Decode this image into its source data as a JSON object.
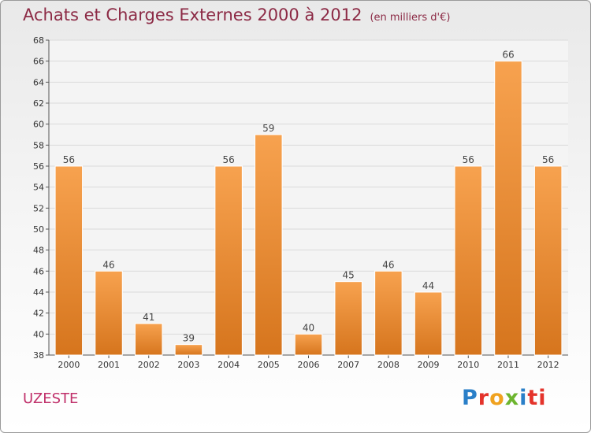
{
  "chart_data": {
    "type": "bar",
    "title": "Achats et Charges Externes 2000 à 2012",
    "subtitle": "(en milliers d'€)",
    "categories": [
      "2000",
      "2001",
      "2002",
      "2003",
      "2004",
      "2005",
      "2006",
      "2007",
      "2008",
      "2009",
      "2010",
      "2011",
      "2012"
    ],
    "values": [
      56,
      46,
      41,
      39,
      56,
      59,
      40,
      45,
      46,
      44,
      56,
      66,
      56
    ],
    "ylim": [
      38,
      68
    ],
    "yticks": [
      38,
      40,
      42,
      44,
      46,
      48,
      50,
      52,
      54,
      56,
      58,
      60,
      62,
      64,
      66,
      68
    ],
    "grid": true,
    "bar_color_top": "#f7a24f",
    "bar_color_bottom": "#d6751d"
  },
  "commune": "UZESTE",
  "logo": {
    "letters": [
      "P",
      "r",
      "o",
      "x",
      "i",
      "ti"
    ]
  }
}
